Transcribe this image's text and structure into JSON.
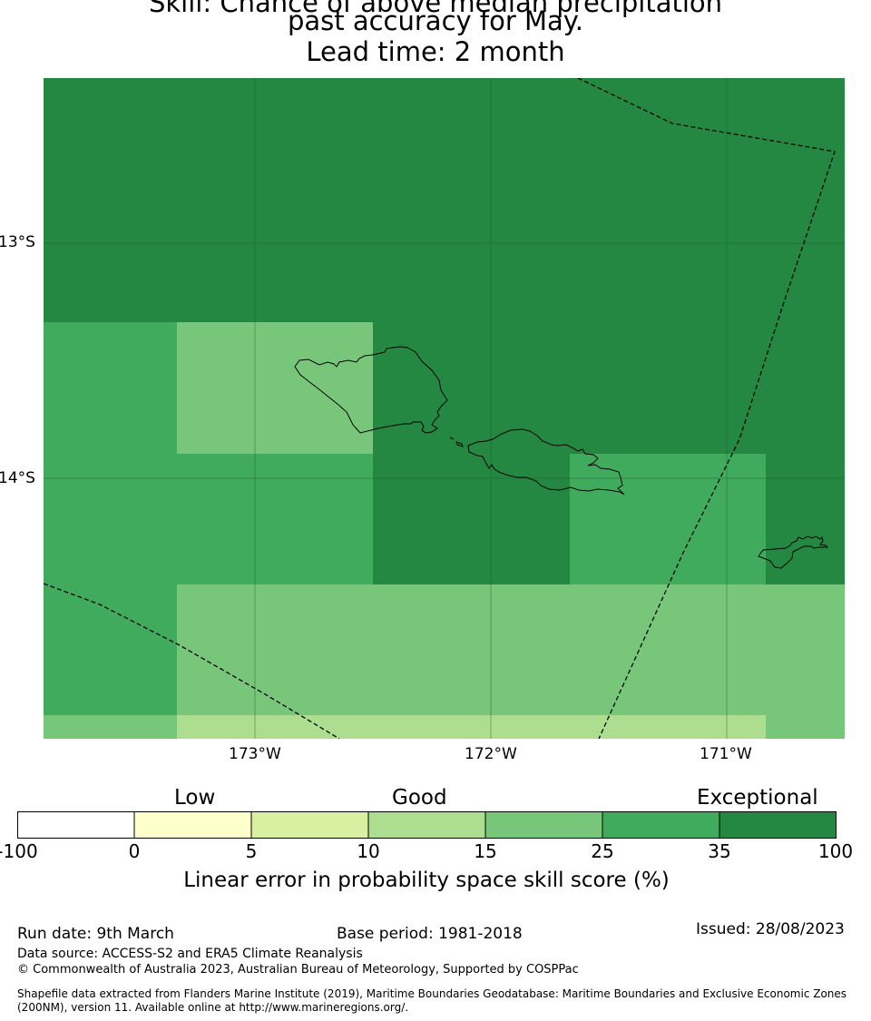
{
  "title": {
    "line1": "Skill: Chance of above median precipitation",
    "line2": "past accuracy for May.",
    "line3": "Lead time: 2 month"
  },
  "map": {
    "lon_ticks": [
      "173°W",
      "172°W",
      "171°W"
    ],
    "lat_ticks": [
      "13°S",
      "14°S"
    ],
    "colors": {
      "c35_100": "#248843",
      "c25_35": "#41ab5d",
      "c15_25": "#78c679",
      "c10_15": "#addd8e",
      "c5_10": "#d9f0a3",
      "c0_5": "#ffffcc",
      "cneg": "#ffffff",
      "grid": "#1a5c2d",
      "coast": "#000000"
    }
  },
  "legend": {
    "categories": [
      "Low",
      "Good",
      "Exceptional"
    ],
    "ticks": [
      "-100",
      "0",
      "5",
      "10",
      "15",
      "25",
      "35",
      "100"
    ],
    "label": "Linear error in probability space skill score (%)"
  },
  "footer": {
    "run_date": "Run date: 9th March",
    "base_period": "Base period: 1981-2018",
    "issued": "Issued: 28/08/2023",
    "data_source": "Data source: ACCESS-S2 and ERA5 Climate Reanalysis",
    "copyright": "© Commonwealth of Australia 2023, Australian Bureau of Meteorology, Supported by COSPPac",
    "shapefile_line1": "Shapefile data extracted from Flanders Marine Institute (2019), Maritime Boundaries Geodatabase: Maritime Boundaries and Exclusive Economic Zones",
    "shapefile_line2": "(200NM), version 11. Available online at http://www.marineregions.org/."
  }
}
